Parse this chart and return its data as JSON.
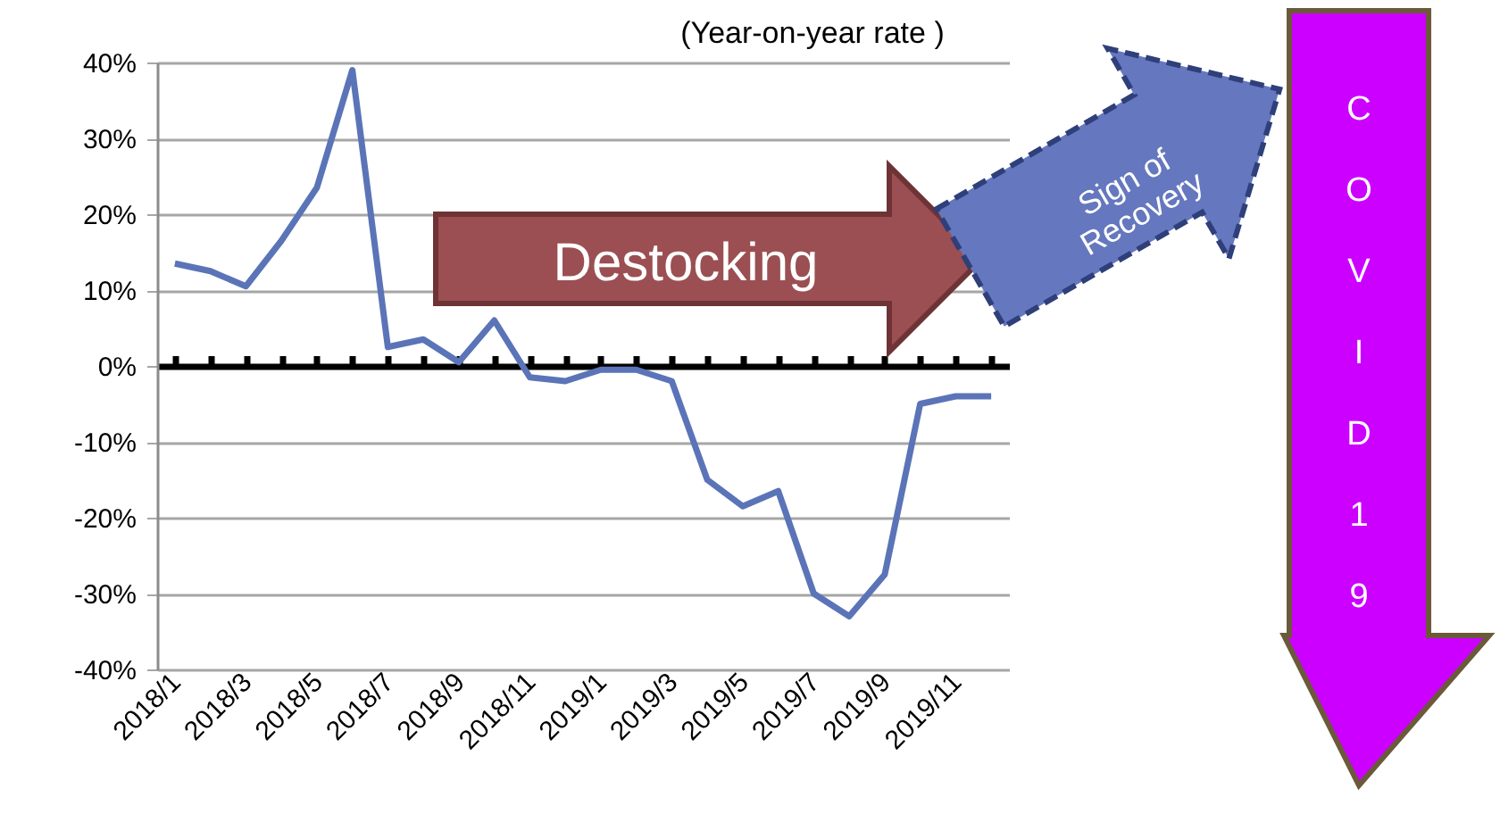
{
  "chart_data": {
    "type": "line",
    "categories": [
      "2018/1",
      null,
      "2018/3",
      null,
      "2018/5",
      null,
      "2018/7",
      null,
      "2018/9",
      null,
      "2018/11",
      null,
      "2019/1",
      null,
      "2019/3",
      null,
      "2019/5",
      null,
      "2019/7",
      null,
      "2019/9",
      null,
      "2019/11",
      null
    ],
    "series": [
      {
        "color": "#5b74b8",
        "values": [
          13.5,
          12.5,
          10.5,
          16.5,
          23.5,
          39,
          2.5,
          3.5,
          0.5,
          6,
          -1.5,
          -2,
          -0.5,
          -0.5,
          -2,
          -15,
          -18.5,
          -16.5,
          -30,
          -33,
          -27.5,
          -5,
          -4,
          -4
        ]
      }
    ],
    "ylim": [
      -40,
      40
    ],
    "yticks": [
      {
        "value": -40,
        "label": "-40%"
      },
      {
        "value": -30,
        "label": "-30%"
      },
      {
        "value": -20,
        "label": "-20%"
      },
      {
        "value": -10,
        "label": "-10%"
      },
      {
        "value": 0,
        "label": "0%"
      },
      {
        "value": 10,
        "label": "10%"
      },
      {
        "value": 20,
        "label": "20%"
      },
      {
        "value": 30,
        "label": "30%"
      },
      {
        "value": 40,
        "label": "40%"
      }
    ],
    "grid": "y",
    "marker": "none",
    "line_style": "solid",
    "annotations": [
      "(Year-on-year rate )",
      "Destocking",
      "Sign of\nRecovery",
      "COVID19"
    ]
  }
}
